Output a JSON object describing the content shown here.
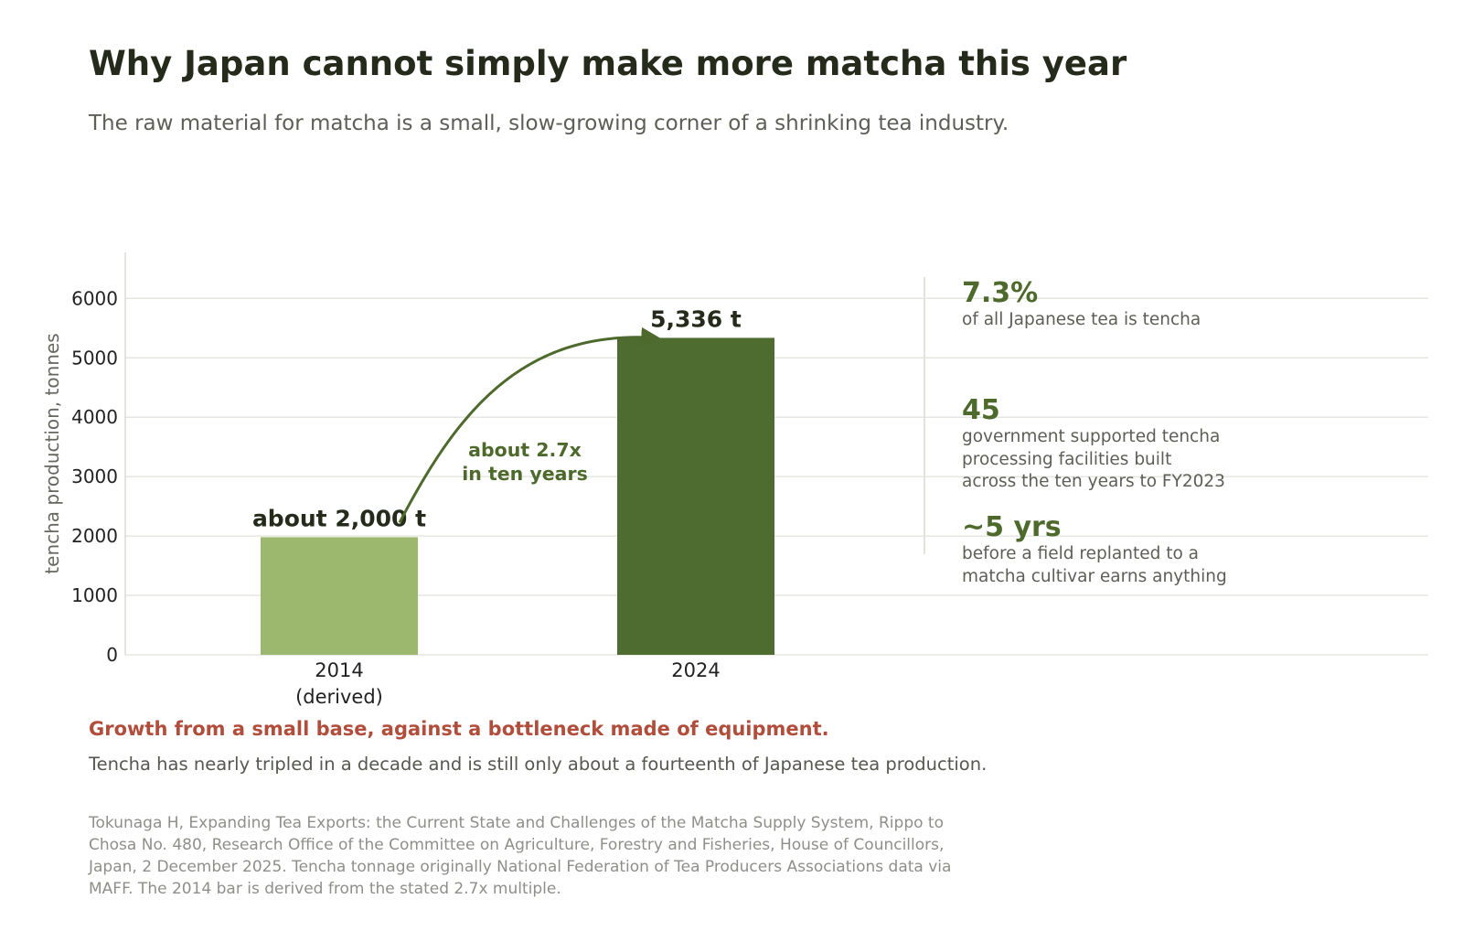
{
  "header": {
    "title": "Why Japan cannot simply make more matcha this year",
    "subtitle": "The raw material for matcha is a small, slow-growing corner of a shrinking tea industry."
  },
  "chart_data": {
    "type": "bar",
    "ylabel": "tencha production, tonnes",
    "xlabel": "",
    "ylim": [
      0,
      6800
    ],
    "yticks": [
      0,
      1000,
      2000,
      3000,
      4000,
      5000,
      6000
    ],
    "grid": true,
    "categories": [
      "2014\n(derived)",
      "2024"
    ],
    "values": [
      1980,
      5336
    ],
    "data_labels": [
      "about 2,000 t",
      "5,336 t"
    ],
    "bar_colors": [
      "#9cb86e",
      "#4e6c2f"
    ],
    "annotation": {
      "text": "about 2.7x\nin ten years",
      "color": "#4d6a2c"
    }
  },
  "stats": [
    {
      "value": "7.3%",
      "label": "of all Japanese tea is tencha"
    },
    {
      "value": "45",
      "label": "government supported tencha\nprocessing facilities built\nacross the ten years to FY2023"
    },
    {
      "value": "~5 yrs",
      "label": "before a field replanted to a\nmatcha cultivar earns anything"
    }
  ],
  "takeaway": {
    "headline": "Growth from a small base, against a bottleneck made of equipment.",
    "body": "Tencha has nearly tripled in a decade and is still only about a fourteenth of Japanese tea production."
  },
  "source": "Tokunaga H, Expanding Tea Exports: the Current State and Challenges of the Matcha Supply System, Rippo to Chosa No. 480, Research Office of the Committee on Agriculture, Forestry and Fisheries, House of Councillors, Japan, 2 December 2025. Tencha tonnage originally National Federation of Tea Producers Associations data via MAFF. The 2014 bar is derived from the stated 2.7x multiple.",
  "colors": {
    "accent_green": "#4d6a2c",
    "light_green": "#9cb86e",
    "dark_green": "#4e6c2f",
    "takeaway_red": "#b14d3b",
    "title_text": "#252b1b"
  }
}
